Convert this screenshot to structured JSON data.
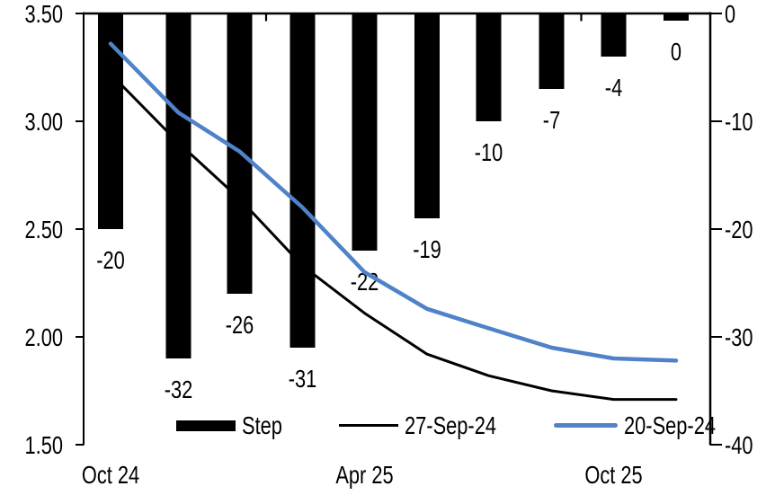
{
  "chart_data": {
    "type": "combo: bar + line",
    "title": "",
    "background": "#ffffff",
    "grid": "off",
    "categories": {
      "count": 10,
      "axis_tick_labels": [
        "Oct 24",
        "Apr 25",
        "Oct 25"
      ],
      "axis_tick_label_category_indices": [
        0,
        4,
        8
      ]
    },
    "left_axis": {
      "min": 1.5,
      "max": 3.5,
      "tick_interval": 0.5,
      "tick_values": [
        3.5,
        3.0,
        2.5,
        2.0,
        1.5
      ],
      "tick_labels": [
        "3.50",
        "3.00",
        "2.50",
        "2.00",
        "1.50"
      ]
    },
    "right_axis": {
      "min": -40,
      "max": 0,
      "tick_interval": 10,
      "tick_values": [
        0,
        -10,
        -20,
        -30,
        -40
      ],
      "tick_labels": [
        "0",
        "-10",
        "-20",
        "-30",
        "-40"
      ]
    },
    "bar_series": {
      "name": "Step",
      "axis": "right",
      "color": "#000000",
      "values": [
        -20,
        -32,
        -26,
        -31,
        -22,
        -19,
        -10,
        -7,
        -4,
        0
      ],
      "data_labels": [
        "-20",
        "-32",
        "-26",
        "-31",
        "-22",
        "-19",
        "-10",
        "-7",
        "-4",
        "0"
      ]
    },
    "line_series": [
      {
        "name": "27-Sep-24",
        "axis": "left",
        "color": "#000000",
        "values": [
          3.22,
          2.9,
          2.64,
          2.33,
          2.11,
          1.92,
          1.82,
          1.75,
          1.71,
          1.71
        ]
      },
      {
        "name": "20-Sep-24",
        "axis": "left",
        "color": "#4f82c8",
        "values": [
          3.36,
          3.04,
          2.86,
          2.6,
          2.3,
          2.13,
          2.04,
          1.95,
          1.9,
          1.89
        ]
      }
    ],
    "legend": {
      "position": "bottom-inside",
      "items": [
        {
          "label": "Step",
          "swatch": "bar",
          "color": "#000000"
        },
        {
          "label": "27-Sep-24",
          "swatch": "line",
          "color": "#000000"
        },
        {
          "label": "20-Sep-24",
          "swatch": "line",
          "color": "#4f82c8"
        }
      ]
    }
  }
}
